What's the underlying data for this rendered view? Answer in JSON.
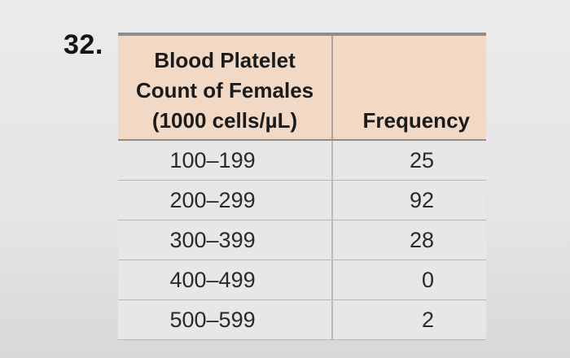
{
  "problem": {
    "number": "32."
  },
  "table": {
    "header": {
      "count_lines": [
        "Blood Platelet",
        "Count of Females",
        "(1000 cells/µL)"
      ],
      "frequency": "Frequency"
    },
    "rows": [
      {
        "range": "100–199",
        "frequency": "25"
      },
      {
        "range": "200–299",
        "frequency": "92"
      },
      {
        "range": "300–399",
        "frequency": "28"
      },
      {
        "range": "400–499",
        "frequency": "0"
      },
      {
        "range": "500–599",
        "frequency": "2"
      }
    ]
  }
}
